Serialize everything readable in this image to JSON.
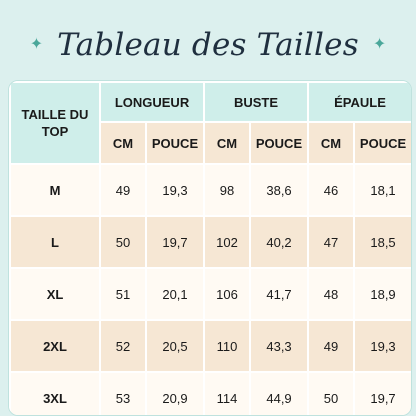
{
  "title": "Tableau des Tailles",
  "decor": {
    "sparkle": "✦"
  },
  "colors": {
    "background": "#dcf0ee",
    "header_mint": "#cfeeea",
    "row_beige": "#f6e7d4",
    "row_cream": "#fffaf3",
    "sparkle": "#4aa79a"
  },
  "table": {
    "size_header": "TAILLE DU TOP",
    "groups": [
      "LONGUEUR",
      "BUSTE",
      "ÉPAULE"
    ],
    "units": [
      "CM",
      "POUCE",
      "CM",
      "POUCE",
      "CM",
      "POUCE"
    ],
    "rows": [
      {
        "size": "M",
        "values": [
          "49",
          "19,3",
          "98",
          "38,6",
          "46",
          "18,1"
        ]
      },
      {
        "size": "L",
        "values": [
          "50",
          "19,7",
          "102",
          "40,2",
          "47",
          "18,5"
        ]
      },
      {
        "size": "XL",
        "values": [
          "51",
          "20,1",
          "106",
          "41,7",
          "48",
          "18,9"
        ]
      },
      {
        "size": "2XL",
        "values": [
          "52",
          "20,5",
          "110",
          "43,3",
          "49",
          "19,3"
        ]
      },
      {
        "size": "3XL",
        "values": [
          "53",
          "20,9",
          "114",
          "44,9",
          "50",
          "19,7"
        ]
      }
    ]
  }
}
